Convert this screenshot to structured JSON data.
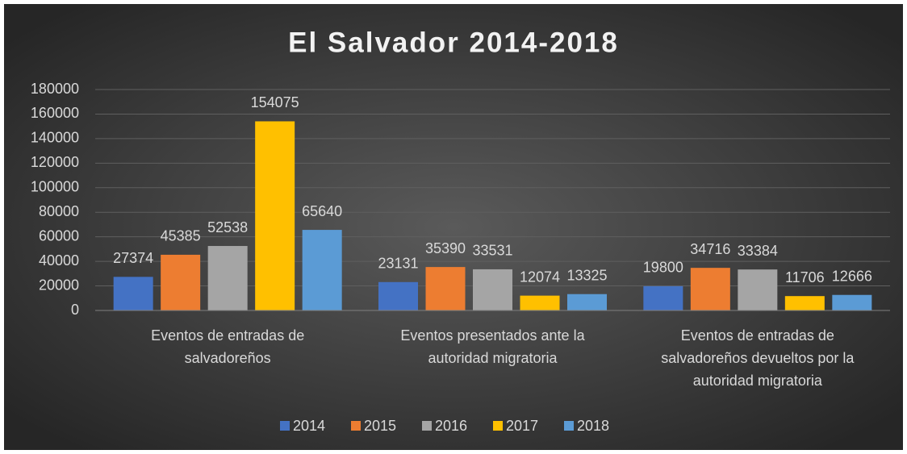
{
  "chart_data": {
    "type": "bar",
    "title": "El Salvador 2014-2018",
    "categories": [
      "Eventos de entradas de salvadoreños",
      "Eventos presentados ante la autoridad migratoria",
      "Eventos de entradas de salvadoreños devueltos por la autoridad migratoria"
    ],
    "series": [
      {
        "name": "2014",
        "color": "#4472c4",
        "values": [
          27374,
          23131,
          19800
        ]
      },
      {
        "name": "2015",
        "color": "#ed7d31",
        "values": [
          45385,
          35390,
          34716
        ]
      },
      {
        "name": "2016",
        "color": "#a5a5a5",
        "values": [
          52538,
          33531,
          33384
        ]
      },
      {
        "name": "2017",
        "color": "#ffc000",
        "values": [
          154075,
          12074,
          11706
        ]
      },
      {
        "name": "2018",
        "color": "#5b9bd5",
        "values": [
          65640,
          13325,
          12666
        ]
      }
    ],
    "ylim": [
      0,
      180000
    ],
    "yticks": [
      0,
      20000,
      40000,
      60000,
      80000,
      100000,
      120000,
      140000,
      160000,
      180000
    ],
    "grid": true,
    "legend": "bottom"
  }
}
